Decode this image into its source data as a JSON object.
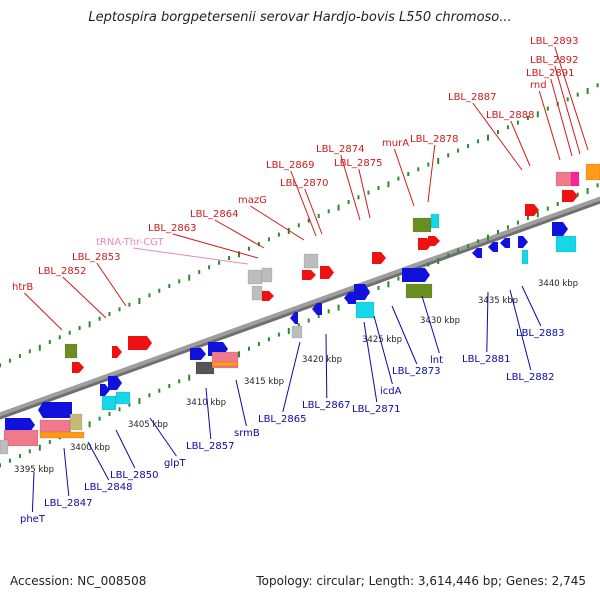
{
  "title": "Leptospira borgpetersenii serovar Hardjo-bovis L550 chromoso...",
  "footer": {
    "accession": "Accession: NC_008508",
    "summary": "Topology: circular; Length: 3,614,446 bp; Genes: 2,745"
  },
  "colors": {
    "backbone": "#9e9e9e",
    "tick": "#2c8a2c",
    "upper_label": "#d11a1a",
    "lower_label": "#0a0aa8",
    "trna_label": "#ee88b8",
    "kbp_label": "#222222"
  },
  "kbp_marks": [
    "3395 kbp",
    "3400 kbp",
    "3405 kbp",
    "3410 kbp",
    "3415 kbp",
    "3420 kbp",
    "3425 kbp",
    "3430 kbp",
    "3435 kbp",
    "3440 kbp"
  ],
  "upper_genes": [
    "htrB",
    "LBL_2852",
    "LBL_2853",
    "tRNA-Thr-CGT",
    "LBL_2863",
    "LBL_2864",
    "mazG",
    "LBL_2869",
    "LBL_2870",
    "LBL_2874",
    "LBL_2875",
    "murA",
    "LBL_2878",
    "LBL_2887",
    "LBL_2888",
    "rnd",
    "LBL_2891",
    "LBL_2892",
    "LBL_2893"
  ],
  "lower_genes": [
    "pheT",
    "LBL_2847",
    "LBL_2848",
    "LBL_2850",
    "glpT",
    "LBL_2857",
    "srmB",
    "LBL_2865",
    "LBL_2867",
    "LBL_2871",
    "icdA",
    "LBL_2873",
    "lnt",
    "LBL_2881",
    "LBL_2882",
    "LBL_2883"
  ]
}
